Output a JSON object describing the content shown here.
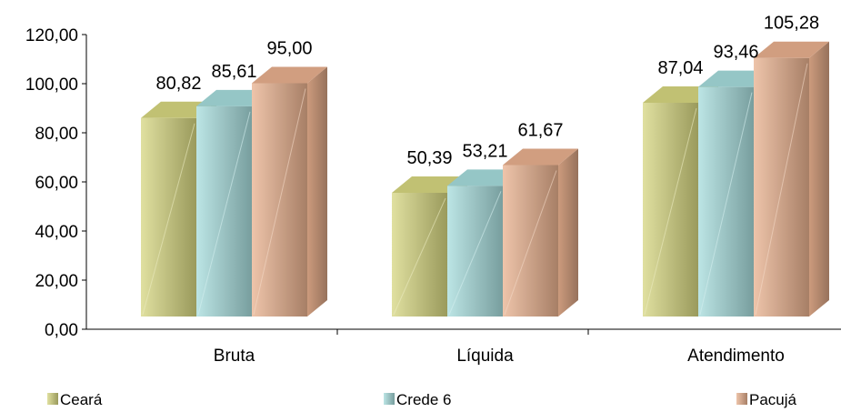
{
  "chart_data": {
    "type": "bar",
    "title": "",
    "xlabel": "",
    "ylabel": "",
    "categories": [
      "Bruta",
      "Líquida",
      "Atendimento"
    ],
    "series": [
      {
        "name": "Ceará",
        "values": [
          80.82,
          50.39,
          87.04
        ],
        "color": "#d6d680"
      },
      {
        "name": "Crede 6",
        "values": [
          85.61,
          53.21,
          93.46
        ],
        "color": "#a6dcdc"
      },
      {
        "name": "Pacujá",
        "values": [
          95.0,
          61.67,
          105.28
        ],
        "color": "#e8b08e"
      }
    ],
    "value_labels": [
      [
        "80,82",
        "50,39",
        "87,04"
      ],
      [
        "85,61",
        "53,21",
        "93,46"
      ],
      [
        "95,00",
        "61,67",
        "105,28"
      ]
    ],
    "ylim": [
      0,
      120
    ],
    "yticks": [
      0,
      20,
      40,
      60,
      80,
      100,
      120
    ],
    "ytick_labels": [
      "0,00",
      "20,00",
      "40,00",
      "60,00",
      "80,00",
      "100,00",
      "120,00"
    ],
    "grid": false,
    "legend_position": "bottom"
  }
}
